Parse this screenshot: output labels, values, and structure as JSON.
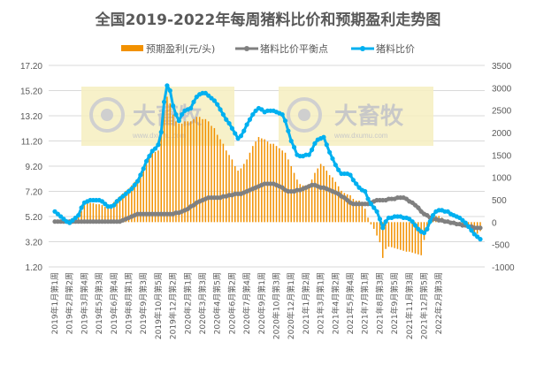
{
  "chart_data": {
    "type": "bar+line",
    "title": "全国2019-2022年每周猪料比价和预期盈利走势图",
    "legend_position": "top",
    "grid": true,
    "colors": {
      "profit": "#F29100",
      "balance": "#808080",
      "ratio": "#00B0F0",
      "text": "#595959",
      "grid": "#d9d9d9"
    },
    "left_axis": {
      "ylim": [
        1.2,
        17.2
      ],
      "ticks": [
        "17.20",
        "15.20",
        "13.20",
        "11.20",
        "9.20",
        "7.20",
        "5.20",
        "3.20",
        "1.20"
      ]
    },
    "right_axis": {
      "ylim": [
        -1000,
        3500
      ],
      "ticks": [
        "3500",
        "3000",
        "2500",
        "2000",
        "1500",
        "1000",
        "500",
        "0",
        "-500",
        "-1000"
      ]
    },
    "x_tick_labels": [
      "2019年1月第1周",
      "2019年2月第2周",
      "2019年3月第4周",
      "2019年5月第3周",
      "2019年6月第4周",
      "2019年8月第1周",
      "2019年9月第3周",
      "2019年10月第5周",
      "2019年12月第2周",
      "2020年2月第1周",
      "2020年3月第3周",
      "2020年4月第5周",
      "2020年6月第2周",
      "2020年7月第4周",
      "2020年9月第1周",
      "2020年10月第3周",
      "2020年12月第1周",
      "2021年1月第2周",
      "2021年3月第1周",
      "2021年4月第2周",
      "2021年5月第4周",
      "2021年7月第1周",
      "2021年8月第3周",
      "2021年9月第5周",
      "2021年11月第3周",
      "2021年12月第5周",
      "2022年2月第3周"
    ],
    "series": [
      {
        "name": "预期盈利(元/头)",
        "type": "bar",
        "axis": "right",
        "values": [
          50,
          30,
          0,
          -30,
          -20,
          0,
          50,
          100,
          150,
          250,
          380,
          420,
          430,
          420,
          400,
          400,
          380,
          340,
          320,
          380,
          450,
          520,
          580,
          640,
          700,
          750,
          820,
          900,
          960,
          1050,
          1150,
          1300,
          1450,
          1550,
          1570,
          1600,
          2000,
          2500,
          2800,
          2650,
          2400,
          2250,
          2200,
          2200,
          2250,
          2250,
          2250,
          2300,
          2350,
          2350,
          2300,
          2300,
          2250,
          2150,
          2100,
          1950,
          1850,
          1750,
          1600,
          1500,
          1400,
          1250,
          1150,
          1200,
          1300,
          1400,
          1550,
          1700,
          1800,
          1900,
          1870,
          1850,
          1800,
          1750,
          1750,
          1700,
          1650,
          1600,
          1550,
          1400,
          1250,
          1100,
          950,
          850,
          820,
          820,
          850,
          950,
          1100,
          1200,
          1300,
          1250,
          1150,
          1050,
          1000,
          900,
          800,
          700,
          650,
          620,
          600,
          520,
          480,
          480,
          450,
          300,
          100,
          -50,
          -150,
          -300,
          -450,
          -800,
          -600,
          -550,
          -560,
          -580,
          -600,
          -620,
          -640,
          -660,
          -660,
          -680,
          -700,
          -720,
          -740,
          -400,
          -150,
          100,
          130,
          140,
          140,
          100,
          50,
          30,
          20,
          0,
          -20,
          -30,
          -50,
          -100,
          -150,
          -200,
          -250,
          -260,
          -200
        ]
      },
      {
        "name": "猪料比价平衡点",
        "type": "line",
        "axis": "left",
        "values": [
          4.8,
          4.8,
          4.8,
          4.8,
          4.8,
          4.8,
          4.8,
          4.8,
          4.8,
          4.8,
          4.8,
          4.8,
          4.8,
          4.8,
          4.8,
          4.8,
          4.8,
          4.8,
          4.8,
          4.8,
          4.8,
          4.8,
          4.8,
          4.9,
          5.0,
          5.1,
          5.2,
          5.3,
          5.4,
          5.4,
          5.4,
          5.4,
          5.4,
          5.4,
          5.4,
          5.4,
          5.4,
          5.4,
          5.4,
          5.4,
          5.4,
          5.5,
          5.5,
          5.6,
          5.7,
          5.8,
          6.0,
          6.1,
          6.3,
          6.4,
          6.5,
          6.6,
          6.7,
          6.7,
          6.7,
          6.7,
          6.7,
          6.8,
          6.8,
          6.9,
          6.9,
          7.0,
          7.0,
          7.0,
          7.1,
          7.2,
          7.3,
          7.4,
          7.5,
          7.6,
          7.7,
          7.8,
          7.8,
          7.8,
          7.8,
          7.7,
          7.6,
          7.5,
          7.3,
          7.2,
          7.2,
          7.2,
          7.3,
          7.3,
          7.4,
          7.5,
          7.6,
          7.7,
          7.7,
          7.6,
          7.5,
          7.5,
          7.4,
          7.3,
          7.2,
          7.1,
          7.0,
          6.8,
          6.7,
          6.5,
          6.3,
          6.2,
          6.2,
          6.2,
          6.2,
          6.2,
          6.2,
          6.3,
          6.4,
          6.5,
          6.5,
          6.5,
          6.5,
          6.6,
          6.6,
          6.6,
          6.7,
          6.7,
          6.7,
          6.6,
          6.4,
          6.3,
          6.1,
          5.9,
          5.6,
          5.4,
          5.3,
          5.1,
          5.0,
          5.0,
          4.9,
          4.9,
          4.8,
          4.8,
          4.7,
          4.7,
          4.6,
          4.6,
          4.5,
          4.5,
          4.4,
          4.4,
          4.3,
          4.3,
          4.3
        ]
      },
      {
        "name": "猪料比价",
        "type": "line",
        "axis": "left",
        "values": [
          5.6,
          5.4,
          5.2,
          5.0,
          4.8,
          4.7,
          4.9,
          5.1,
          5.3,
          5.9,
          6.3,
          6.4,
          6.5,
          6.5,
          6.5,
          6.5,
          6.4,
          6.2,
          6.0,
          6.0,
          6.1,
          6.4,
          6.6,
          6.8,
          7.0,
          7.2,
          7.4,
          7.7,
          8.0,
          8.5,
          9.0,
          9.6,
          10.0,
          10.4,
          10.6,
          10.9,
          11.9,
          14.3,
          15.6,
          15.2,
          14.0,
          13.3,
          12.8,
          13.3,
          13.6,
          13.7,
          13.8,
          14.3,
          14.7,
          14.9,
          15.0,
          15.0,
          14.8,
          14.6,
          14.4,
          14.1,
          13.7,
          13.3,
          12.9,
          12.6,
          12.2,
          11.8,
          11.4,
          11.6,
          12.0,
          12.5,
          12.9,
          13.3,
          13.6,
          13.8,
          13.7,
          13.5,
          13.6,
          13.6,
          13.6,
          13.5,
          13.4,
          13.3,
          12.8,
          12.0,
          11.2,
          10.7,
          10.1,
          10.0,
          10.0,
          10.1,
          10.1,
          10.5,
          11.0,
          11.3,
          11.4,
          11.5,
          10.9,
          10.3,
          9.8,
          9.3,
          8.9,
          8.6,
          8.6,
          8.6,
          8.5,
          8.1,
          7.8,
          7.5,
          7.3,
          7.2,
          6.6,
          6.2,
          5.9,
          5.6,
          5.0,
          4.3,
          4.8,
          5.1,
          5.1,
          5.2,
          5.2,
          5.2,
          5.1,
          5.1,
          5.0,
          4.8,
          4.5,
          4.2,
          4.0,
          3.9,
          4.2,
          4.8,
          5.3,
          5.6,
          5.7,
          5.7,
          5.6,
          5.6,
          5.4,
          5.3,
          5.2,
          5.1,
          4.9,
          4.7,
          4.4,
          4.1,
          3.8,
          3.6,
          3.4
        ]
      }
    ]
  },
  "watermark": {
    "logo_text": "大畜牧",
    "url_text": "www.dxumu.com"
  }
}
